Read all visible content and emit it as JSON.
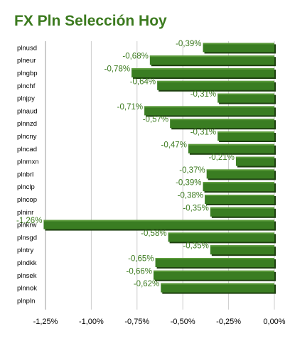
{
  "chart_data": {
    "type": "bar",
    "orientation": "horizontal",
    "title": "FX Pln Selección Hoy",
    "categories": [
      "plnusd",
      "plneur",
      "plngbp",
      "plnchf",
      "plnjpy",
      "plnaud",
      "plnnzd",
      "plncny",
      "plncad",
      "plnmxn",
      "plnbrl",
      "plnclp",
      "plncop",
      "plninr",
      "plnkrw",
      "plnsgd",
      "plntry",
      "plndkk",
      "plnsek",
      "plnnok",
      "plnpln"
    ],
    "values": [
      -0.39,
      -0.68,
      -0.78,
      -0.64,
      -0.31,
      -0.71,
      -0.57,
      -0.31,
      -0.47,
      -0.21,
      -0.37,
      -0.39,
      -0.38,
      -0.35,
      -1.26,
      -0.58,
      -0.35,
      -0.65,
      -0.66,
      -0.62,
      0
    ],
    "data_labels": [
      "-0,39%",
      "-0,68%",
      "-0,78%",
      "-0,64%",
      "-0,31%",
      "-0,71%",
      "-0,57%",
      "-0,31%",
      "-0,47%",
      "-0,21%",
      "-0,37%",
      "-0,39%",
      "-0,38%",
      "-0,35%",
      "-1,26%",
      "-0,58%",
      "-0,35%",
      "-0,65%",
      "-0,66%",
      "-0,62%",
      ""
    ],
    "xlim": [
      -1.25,
      0
    ],
    "xticks": [
      -1.25,
      -1.0,
      -0.75,
      -0.5,
      -0.25,
      0
    ],
    "xtick_labels": [
      "-1,25%",
      "-1,00%",
      "-0,75%",
      "-0,50%",
      "-0,25%",
      "0,00%"
    ],
    "grid": "vertical",
    "legend": "none",
    "colors": {
      "bar": "#3a7d22",
      "bar_shadow": "#1e4010",
      "label": "#3b7a1e",
      "grid": "#cccccc"
    }
  }
}
